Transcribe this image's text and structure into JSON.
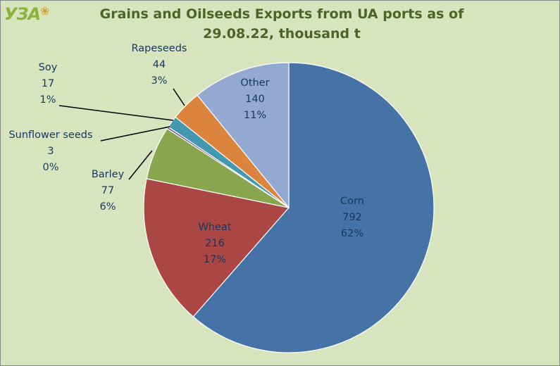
{
  "logo": {
    "text": "УЗА"
  },
  "chart_data": {
    "type": "pie",
    "title": "Grains and Oilseeds Exports from UA ports as of 29.08.22, thousand t",
    "title_lines": [
      "Grains and Oilseeds Exports from UA ports as of",
      "29.08.22, thousand t"
    ],
    "slices": [
      {
        "label": "Corn",
        "value": 792,
        "percent": "62%",
        "color": "#4572a7"
      },
      {
        "label": "Wheat",
        "value": 216,
        "percent": "17%",
        "color": "#aa4643"
      },
      {
        "label": "Barley",
        "value": 77,
        "percent": "6%",
        "color": "#89a54e"
      },
      {
        "label": "Sunflower seeds",
        "value": 3,
        "percent": "0%",
        "color": "#71588f"
      },
      {
        "label": "Soy",
        "value": 17,
        "percent": "1%",
        "color": "#4198af"
      },
      {
        "label": "Rapeseeds",
        "value": 44,
        "percent": "3%",
        "color": "#db843d"
      },
      {
        "label": "Other",
        "value": 140,
        "percent": "11%",
        "color": "#93a9cf"
      }
    ]
  }
}
